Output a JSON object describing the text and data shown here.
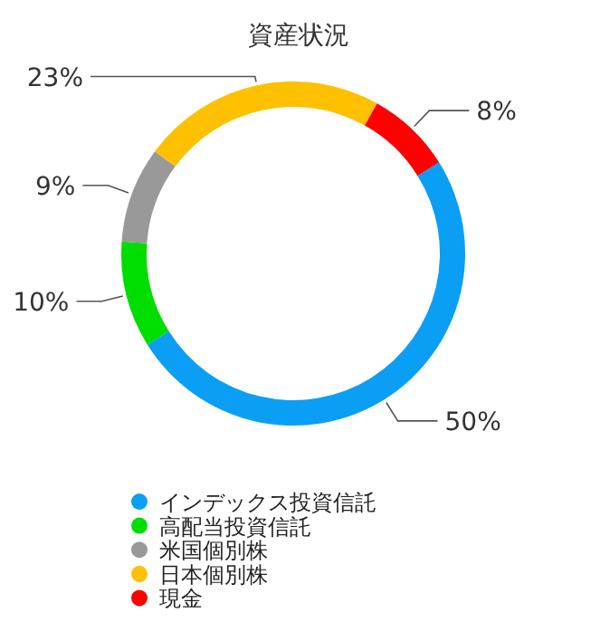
{
  "chart_data": {
    "type": "donut",
    "title": "資産状況",
    "categories": [
      "インデックス投資信託",
      "高配当投資信託",
      "米国個別株",
      "日本個別株",
      "現金"
    ],
    "values": [
      50,
      10,
      9,
      23,
      8
    ],
    "colors": [
      "#0a9ff5",
      "#00dd00",
      "#999999",
      "#ffc000",
      "#ff0000"
    ],
    "value_labels": [
      "50%",
      "10%",
      "9%",
      "23%",
      "8%"
    ],
    "legend": "bottom"
  }
}
